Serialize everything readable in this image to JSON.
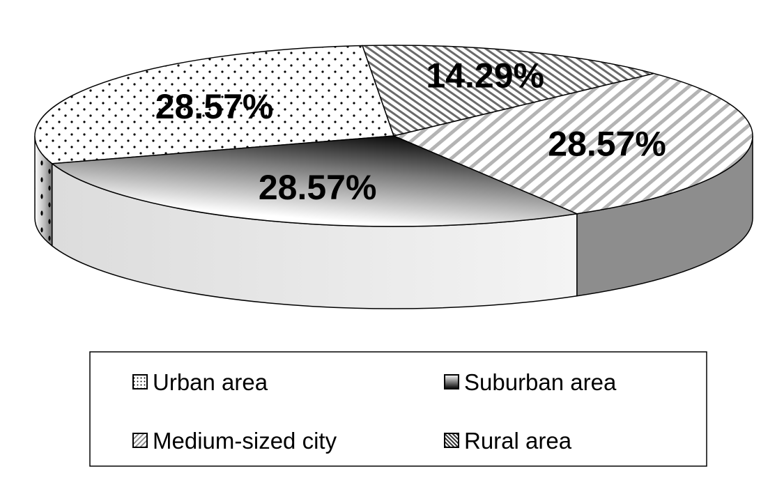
{
  "chart_data": {
    "type": "pie",
    "style": "3d-exploded-depth",
    "title": "",
    "slices": [
      {
        "name": "Urban area",
        "value": 28.57,
        "label": "28.57%",
        "pattern": "dots"
      },
      {
        "name": "Suburban area",
        "value": 28.57,
        "label": "28.57%",
        "pattern": "gradient-dark"
      },
      {
        "name": "Medium-sized city",
        "value": 28.57,
        "label": "28.57%",
        "pattern": "diagonal-light"
      },
      {
        "name": "Rural area",
        "value": 14.29,
        "label": "14.29%",
        "pattern": "diagonal-dense"
      }
    ],
    "legend": {
      "placement": "bottom",
      "items": [
        "Urban area",
        "Suburban area",
        "Medium-sized city",
        "Rural area"
      ]
    }
  }
}
